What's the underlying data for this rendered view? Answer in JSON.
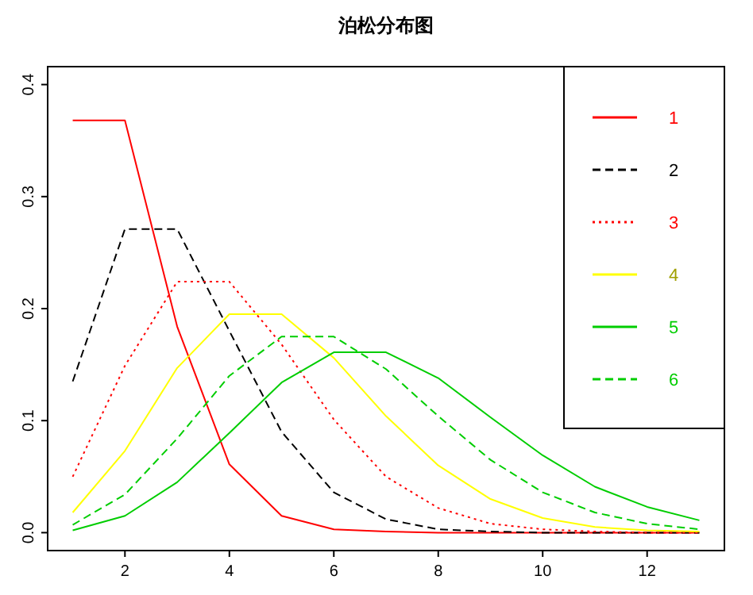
{
  "chart_data": {
    "type": "line",
    "title": "泊松分布图",
    "x": [
      1,
      2,
      3,
      4,
      5,
      6,
      7,
      8,
      9,
      10,
      11,
      12,
      13
    ],
    "xlim": [
      0.52,
      13.48
    ],
    "xticks": [
      2,
      4,
      6,
      8,
      10,
      12
    ],
    "ylim": [
      -0.016,
      0.416
    ],
    "yticks": [
      {
        "value": 0,
        "label": "0.0"
      },
      {
        "value": 0.1,
        "label": "0.1"
      },
      {
        "value": 0.2,
        "label": "0.2"
      },
      {
        "value": 0.3,
        "label": "0.3"
      },
      {
        "value": 0.4,
        "label": "0.4"
      }
    ],
    "grid": false,
    "legend": "top right",
    "marker": "none",
    "series": [
      {
        "name": "1",
        "color": "#ff0000",
        "line_style": "solid",
        "values": [
          0.368,
          0.368,
          0.184,
          0.061,
          0.015,
          0.003,
          0.001,
          0,
          0,
          0,
          0,
          0,
          0
        ]
      },
      {
        "name": "2",
        "color": "#000000",
        "line_style": "dashed",
        "values": [
          0.135,
          0.271,
          0.271,
          0.18,
          0.09,
          0.036,
          0.012,
          0.003,
          0.001,
          0,
          0,
          0,
          0
        ]
      },
      {
        "name": "3",
        "color": "#ff0000",
        "line_style": "dotted",
        "values": [
          0.05,
          0.149,
          0.224,
          0.224,
          0.168,
          0.101,
          0.05,
          0.022,
          0.008,
          0.003,
          0.001,
          0,
          0
        ]
      },
      {
        "name": "4",
        "color": "#ffff00",
        "line_style": "solid",
        "values": [
          0.018,
          0.073,
          0.147,
          0.195,
          0.195,
          0.156,
          0.104,
          0.06,
          0.03,
          0.013,
          0.005,
          0.002,
          0.001
        ]
      },
      {
        "name": "5",
        "color": "#00cd00",
        "line_style": "solid",
        "values": [
          0.002,
          0.015,
          0.045,
          0.089,
          0.134,
          0.161,
          0.161,
          0.138,
          0.103,
          0.069,
          0.041,
          0.023,
          0.011
        ]
      },
      {
        "name": "6",
        "color": "#00cd00",
        "line_style": "dashed",
        "values": [
          0.007,
          0.034,
          0.084,
          0.14,
          0.175,
          0.175,
          0.146,
          0.104,
          0.065,
          0.036,
          0.018,
          0.008,
          0.003
        ]
      }
    ]
  }
}
